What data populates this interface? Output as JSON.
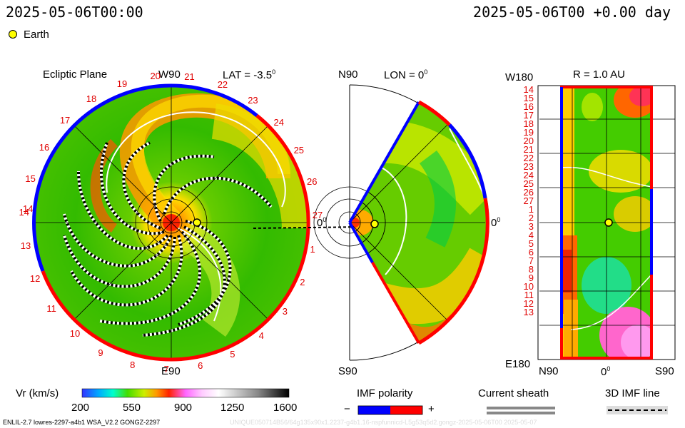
{
  "header": {
    "left_time": "2025-05-06T00:00",
    "right_time": "2025-05-06T00 +0.00 day",
    "earth_legend": "Earth"
  },
  "ecliptic": {
    "title": "Ecliptic Plane",
    "top_label": "W90",
    "lat_label": "LAT = -3.5",
    "lat_sup": "0",
    "bottom_label": "E90",
    "right_deg": "0",
    "right_sup": "0",
    "left_deg": "14",
    "clock_labels": [
      "20",
      "21",
      "22",
      "23",
      "24",
      "25",
      "26",
      "27",
      "1",
      "2",
      "3",
      "4",
      "5",
      "6",
      "7",
      "8",
      "9",
      "10",
      "11",
      "12",
      "13",
      "14",
      "15",
      "16",
      "17",
      "18",
      "19"
    ]
  },
  "meridional": {
    "top_label": "N90",
    "lon_label": "LON = 0",
    "lon_sup": "0",
    "bottom_label": "S90",
    "right_label": "0",
    "right_sup": "0"
  },
  "radial": {
    "top_left": "W180",
    "title": "R = 1.0 AU",
    "bottom_left": "E180",
    "x_left": "N90",
    "x_mid": "0",
    "x_mid_sup": "0",
    "x_right": "S90",
    "rows": [
      "14",
      "15",
      "16",
      "17",
      "18",
      "19",
      "20",
      "21",
      "22",
      "23",
      "24",
      "25",
      "26",
      "27",
      "1",
      "2",
      "3",
      "4",
      "5",
      "6",
      "7",
      "8",
      "9",
      "10",
      "11",
      "12",
      "13"
    ]
  },
  "colorbar": {
    "label": "Vr (km/s)",
    "ticks": [
      "200",
      "550",
      "900",
      "1250",
      "1600"
    ],
    "min": 200,
    "max": 1600
  },
  "imf_polarity": {
    "title": "IMF polarity",
    "minus": "−",
    "plus": "+",
    "colors": {
      "negative": "#0000ff",
      "positive": "#ff0000"
    }
  },
  "current_sheath": {
    "title": "Current sheath"
  },
  "imf_line": {
    "title": "3D IMF line"
  },
  "footer": {
    "left": "ENLIL-2.7 lowres-2297-a4b1 WSA_V2.2 GONGZ-2297",
    "right": "UNIQUE050714B56/64g135x90x1.2237-g4b1.16-nspfunnicd-L5g53q5d2.gongz-2025-05-06T00   2025-05-07"
  }
}
